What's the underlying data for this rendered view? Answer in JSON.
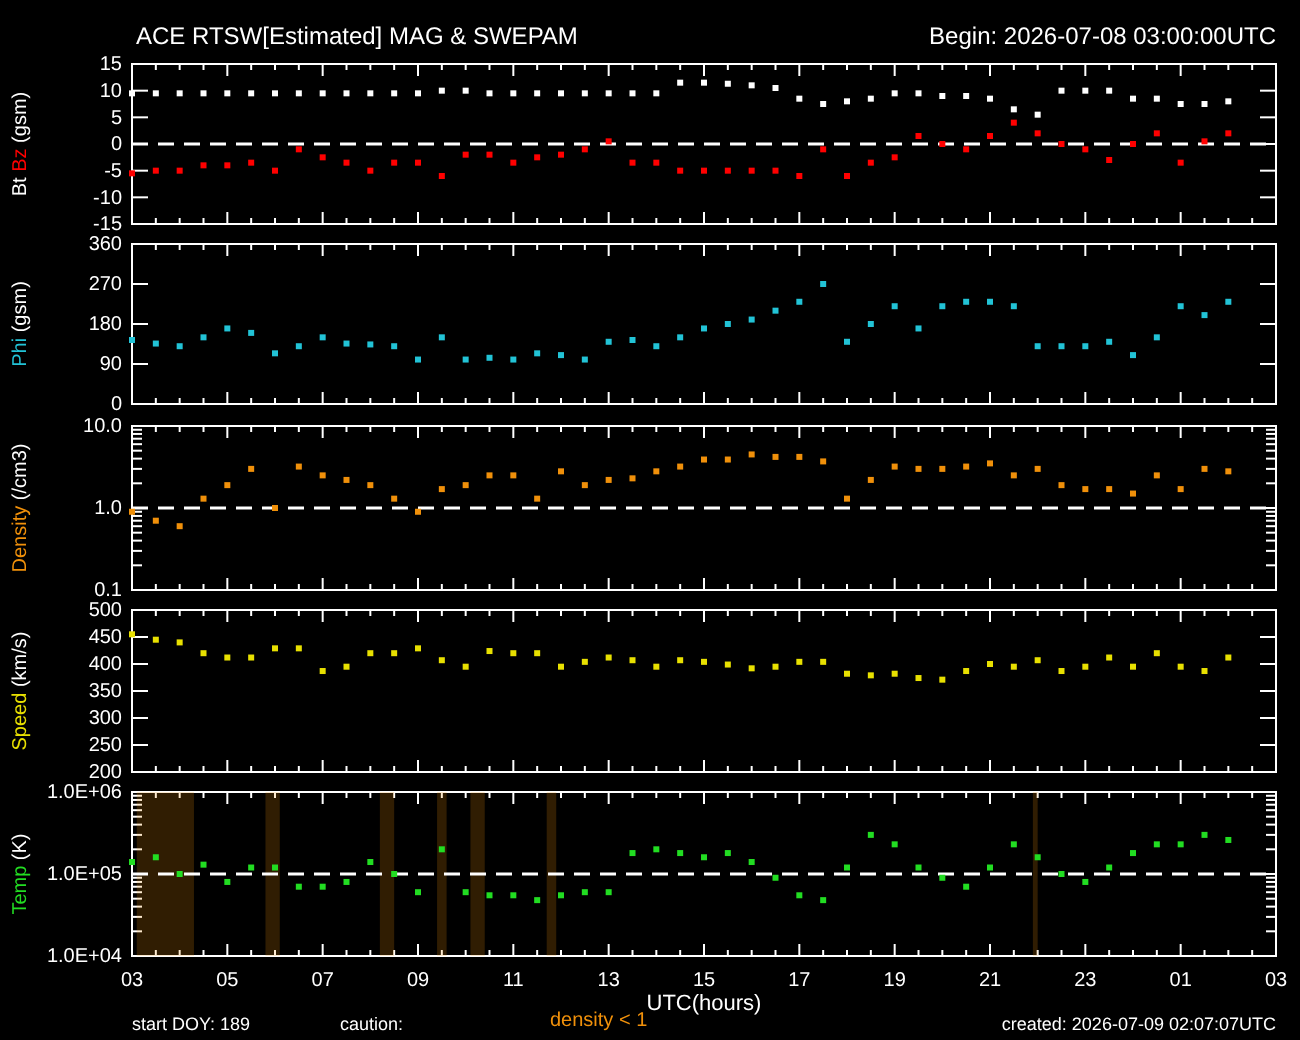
{
  "chart_data": [
    {
      "type": "scatter",
      "title": "ACE RTSW[Estimated] MAG & SWEPAM",
      "subtitle": "Begin: 2026-07-08 03:00:00UTC",
      "ylabel": "(gsm)",
      "marker": "square",
      "tick_labels": "y",
      "xlim": [
        "2026-07-08T03:00",
        "2026-07-09T03:00"
      ],
      "xticks": [
        {
          "value": "2026-07-08T03:00",
          "label": null
        },
        {
          "value": "2026-07-08T05:00",
          "label": null
        },
        {
          "value": "2026-07-08T07:00",
          "label": null
        },
        {
          "value": "2026-07-08T09:00",
          "label": null
        },
        {
          "value": "2026-07-08T11:00",
          "label": null
        },
        {
          "value": "2026-07-08T13:00",
          "label": null
        },
        {
          "value": "2026-07-08T15:00",
          "label": null
        },
        {
          "value": "2026-07-08T17:00",
          "label": null
        },
        {
          "value": "2026-07-08T19:00",
          "label": null
        },
        {
          "value": "2026-07-08T21:00",
          "label": null
        },
        {
          "value": "2026-07-08T23:00",
          "label": null
        },
        {
          "value": "2026-07-09T01:00",
          "label": null
        },
        {
          "value": "2026-07-09T03:00",
          "label": null
        }
      ],
      "ylim": [
        -15,
        15
      ],
      "yticks": [
        -15,
        -10,
        -5,
        0,
        5,
        10,
        15
      ],
      "ref_lines": [
        {
          "axis": "y",
          "value": 0,
          "color": "#ffffff",
          "line_style": "dashed"
        }
      ],
      "x": [
        "2026-07-08T03:00",
        "2026-07-08T03:30",
        "2026-07-08T04:00",
        "2026-07-08T04:30",
        "2026-07-08T05:00",
        "2026-07-08T05:30",
        "2026-07-08T06:00",
        "2026-07-08T06:30",
        "2026-07-08T07:00",
        "2026-07-08T07:30",
        "2026-07-08T08:00",
        "2026-07-08T08:30",
        "2026-07-08T09:00",
        "2026-07-08T09:30",
        "2026-07-08T10:00",
        "2026-07-08T10:30",
        "2026-07-08T11:00",
        "2026-07-08T11:30",
        "2026-07-08T12:00",
        "2026-07-08T12:30",
        "2026-07-08T13:00",
        "2026-07-08T13:30",
        "2026-07-08T14:00",
        "2026-07-08T14:30",
        "2026-07-08T15:00",
        "2026-07-08T15:30",
        "2026-07-08T16:00",
        "2026-07-08T16:30",
        "2026-07-08T17:00",
        "2026-07-08T17:30",
        "2026-07-08T18:00",
        "2026-07-08T18:30",
        "2026-07-08T19:00",
        "2026-07-08T19:30",
        "2026-07-08T20:00",
        "2026-07-08T20:30",
        "2026-07-08T21:00",
        "2026-07-08T21:30",
        "2026-07-08T22:00",
        "2026-07-08T22:30",
        "2026-07-08T23:00",
        "2026-07-08T23:30",
        "2026-07-09T00:00",
        "2026-07-09T00:30",
        "2026-07-09T01:00",
        "2026-07-09T01:30",
        "2026-07-09T02:00"
      ],
      "series": [
        {
          "name": "Bt",
          "color": "#ffffff",
          "values": [
            9.5,
            9.5,
            9.5,
            9.5,
            9.5,
            9.5,
            9.5,
            9.5,
            9.5,
            9.5,
            9.5,
            9.5,
            9.5,
            10,
            10,
            9.5,
            9.5,
            9.5,
            9.5,
            9.5,
            9.5,
            9.5,
            9.5,
            11.5,
            11.5,
            11.3,
            11,
            10.5,
            8.5,
            7.5,
            8,
            8.5,
            9.5,
            9.5,
            9,
            9,
            8.5,
            6.5,
            5.5,
            10,
            10,
            10,
            8.5,
            8.5,
            7.5,
            7.5,
            8
          ]
        },
        {
          "name": "Bz",
          "color": "#ff0000",
          "values": [
            -5.5,
            -5,
            -5,
            -4,
            -4,
            -3.5,
            -5,
            -1,
            -2.5,
            -3.5,
            -5,
            -3.5,
            -3.5,
            -6,
            -2,
            -2,
            -3.5,
            -2.5,
            -2,
            -1,
            0.5,
            -3.5,
            -3.5,
            -5,
            -5,
            -5,
            -5,
            -5,
            -6,
            -1,
            -6,
            -3.5,
            -2.5,
            1.5,
            0,
            -1,
            1.5,
            4,
            2,
            0,
            -1,
            -3,
            0,
            2,
            -3.5,
            0.5,
            2
          ]
        }
      ]
    },
    {
      "type": "scatter",
      "ylabel": "(gsm)",
      "marker": "square",
      "tick_labels": "y",
      "xlim": [
        "2026-07-08T03:00",
        "2026-07-09T03:00"
      ],
      "xticks": [
        {
          "value": "2026-07-08T03:00",
          "label": null
        },
        {
          "value": "2026-07-08T05:00",
          "label": null
        },
        {
          "value": "2026-07-08T07:00",
          "label": null
        },
        {
          "value": "2026-07-08T09:00",
          "label": null
        },
        {
          "value": "2026-07-08T11:00",
          "label": null
        },
        {
          "value": "2026-07-08T13:00",
          "label": null
        },
        {
          "value": "2026-07-08T15:00",
          "label": null
        },
        {
          "value": "2026-07-08T17:00",
          "label": null
        },
        {
          "value": "2026-07-08T19:00",
          "label": null
        },
        {
          "value": "2026-07-08T21:00",
          "label": null
        },
        {
          "value": "2026-07-08T23:00",
          "label": null
        },
        {
          "value": "2026-07-09T01:00",
          "label": null
        },
        {
          "value": "2026-07-09T03:00",
          "label": null
        }
      ],
      "ylim": [
        0,
        360
      ],
      "yticks": [
        0,
        90,
        180,
        270,
        360
      ],
      "x": [
        "2026-07-08T03:00",
        "2026-07-08T03:30",
        "2026-07-08T04:00",
        "2026-07-08T04:30",
        "2026-07-08T05:00",
        "2026-07-08T05:30",
        "2026-07-08T06:00",
        "2026-07-08T06:30",
        "2026-07-08T07:00",
        "2026-07-08T07:30",
        "2026-07-08T08:00",
        "2026-07-08T08:30",
        "2026-07-08T09:00",
        "2026-07-08T09:30",
        "2026-07-08T10:00",
        "2026-07-08T10:30",
        "2026-07-08T11:00",
        "2026-07-08T11:30",
        "2026-07-08T12:00",
        "2026-07-08T12:30",
        "2026-07-08T13:00",
        "2026-07-08T13:30",
        "2026-07-08T14:00",
        "2026-07-08T14:30",
        "2026-07-08T15:00",
        "2026-07-08T15:30",
        "2026-07-08T16:00",
        "2026-07-08T16:30",
        "2026-07-08T17:00",
        "2026-07-08T17:30",
        "2026-07-08T18:00",
        "2026-07-08T18:30",
        "2026-07-08T19:00",
        "2026-07-08T19:30",
        "2026-07-08T20:00",
        "2026-07-08T20:30",
        "2026-07-08T21:00",
        "2026-07-08T21:30",
        "2026-07-08T22:00",
        "2026-07-08T22:30",
        "2026-07-08T23:00",
        "2026-07-08T23:30",
        "2026-07-09T00:00",
        "2026-07-09T00:30",
        "2026-07-09T01:00",
        "2026-07-09T01:30",
        "2026-07-09T02:00"
      ],
      "series": [
        {
          "name": "Phi",
          "color": "#22c3d6",
          "values": [
            144,
            136,
            130,
            150,
            170,
            160,
            114,
            130,
            150,
            136,
            134,
            130,
            100,
            150,
            100,
            104,
            100,
            114,
            110,
            100,
            140,
            144,
            130,
            150,
            170,
            180,
            190,
            210,
            230,
            270,
            140,
            180,
            220,
            170,
            220,
            230,
            230,
            220,
            130,
            130,
            130,
            140,
            110,
            150,
            220,
            200,
            230
          ]
        }
      ]
    },
    {
      "type": "scatter",
      "ylabel": "(/cm3)",
      "marker": "square",
      "tick_labels": "y",
      "log": "y",
      "xlim": [
        "2026-07-08T03:00",
        "2026-07-09T03:00"
      ],
      "xticks": [
        {
          "value": "2026-07-08T03:00",
          "label": null
        },
        {
          "value": "2026-07-08T05:00",
          "label": null
        },
        {
          "value": "2026-07-08T07:00",
          "label": null
        },
        {
          "value": "2026-07-08T09:00",
          "label": null
        },
        {
          "value": "2026-07-08T11:00",
          "label": null
        },
        {
          "value": "2026-07-08T13:00",
          "label": null
        },
        {
          "value": "2026-07-08T15:00",
          "label": null
        },
        {
          "value": "2026-07-08T17:00",
          "label": null
        },
        {
          "value": "2026-07-08T19:00",
          "label": null
        },
        {
          "value": "2026-07-08T21:00",
          "label": null
        },
        {
          "value": "2026-07-08T23:00",
          "label": null
        },
        {
          "value": "2026-07-09T01:00",
          "label": null
        },
        {
          "value": "2026-07-09T03:00",
          "label": null
        }
      ],
      "ylim": [
        0.1,
        10
      ],
      "yticks": [
        {
          "value": 0.1,
          "label": "0.1"
        },
        {
          "value": 1,
          "label": "1.0"
        },
        {
          "value": 10,
          "label": "10.0"
        }
      ],
      "ref_lines": [
        {
          "axis": "y",
          "value": 1,
          "color": "#ffffff",
          "line_style": "dashed"
        }
      ],
      "x": [
        "2026-07-08T03:00",
        "2026-07-08T03:30",
        "2026-07-08T04:00",
        "2026-07-08T04:30",
        "2026-07-08T05:00",
        "2026-07-08T05:30",
        "2026-07-08T06:00",
        "2026-07-08T06:30",
        "2026-07-08T07:00",
        "2026-07-08T07:30",
        "2026-07-08T08:00",
        "2026-07-08T08:30",
        "2026-07-08T09:00",
        "2026-07-08T09:30",
        "2026-07-08T10:00",
        "2026-07-08T10:30",
        "2026-07-08T11:00",
        "2026-07-08T11:30",
        "2026-07-08T12:00",
        "2026-07-08T12:30",
        "2026-07-08T13:00",
        "2026-07-08T13:30",
        "2026-07-08T14:00",
        "2026-07-08T14:30",
        "2026-07-08T15:00",
        "2026-07-08T15:30",
        "2026-07-08T16:00",
        "2026-07-08T16:30",
        "2026-07-08T17:00",
        "2026-07-08T17:30",
        "2026-07-08T18:00",
        "2026-07-08T18:30",
        "2026-07-08T19:00",
        "2026-07-08T19:30",
        "2026-07-08T20:00",
        "2026-07-08T20:30",
        "2026-07-08T21:00",
        "2026-07-08T21:30",
        "2026-07-08T22:00",
        "2026-07-08T22:30",
        "2026-07-08T23:00",
        "2026-07-08T23:30",
        "2026-07-09T00:00",
        "2026-07-09T00:30",
        "2026-07-09T01:00",
        "2026-07-09T01:30",
        "2026-07-09T02:00"
      ],
      "series": [
        {
          "name": "Density",
          "color": "#f0900a",
          "values": [
            0.9,
            0.7,
            0.6,
            1.3,
            1.9,
            3,
            1,
            3.2,
            2.5,
            2.2,
            1.9,
            1.3,
            0.9,
            1.7,
            1.9,
            2.5,
            2.5,
            1.3,
            2.8,
            1.9,
            2.2,
            2.3,
            2.8,
            3.2,
            3.9,
            3.9,
            4.5,
            4.2,
            4.2,
            3.7,
            1.3,
            2.2,
            3.2,
            3,
            3,
            3.2,
            3.5,
            2.5,
            3,
            1.9,
            1.7,
            1.7,
            1.5,
            2.5,
            1.7,
            3,
            2.8
          ]
        }
      ]
    },
    {
      "type": "scatter",
      "ylabel": "(km/s)",
      "marker": "square",
      "tick_labels": "y",
      "xlim": [
        "2026-07-08T03:00",
        "2026-07-09T03:00"
      ],
      "xticks": [
        {
          "value": "2026-07-08T03:00",
          "label": null
        },
        {
          "value": "2026-07-08T05:00",
          "label": null
        },
        {
          "value": "2026-07-08T07:00",
          "label": null
        },
        {
          "value": "2026-07-08T09:00",
          "label": null
        },
        {
          "value": "2026-07-08T11:00",
          "label": null
        },
        {
          "value": "2026-07-08T13:00",
          "label": null
        },
        {
          "value": "2026-07-08T15:00",
          "label": null
        },
        {
          "value": "2026-07-08T17:00",
          "label": null
        },
        {
          "value": "2026-07-08T19:00",
          "label": null
        },
        {
          "value": "2026-07-08T21:00",
          "label": null
        },
        {
          "value": "2026-07-08T23:00",
          "label": null
        },
        {
          "value": "2026-07-09T01:00",
          "label": null
        },
        {
          "value": "2026-07-09T03:00",
          "label": null
        }
      ],
      "ylim": [
        200,
        500
      ],
      "yticks": [
        200,
        250,
        300,
        350,
        400,
        450,
        500
      ],
      "x": [
        "2026-07-08T03:00",
        "2026-07-08T03:30",
        "2026-07-08T04:00",
        "2026-07-08T04:30",
        "2026-07-08T05:00",
        "2026-07-08T05:30",
        "2026-07-08T06:00",
        "2026-07-08T06:30",
        "2026-07-08T07:00",
        "2026-07-08T07:30",
        "2026-07-08T08:00",
        "2026-07-08T08:30",
        "2026-07-08T09:00",
        "2026-07-08T09:30",
        "2026-07-08T10:00",
        "2026-07-08T10:30",
        "2026-07-08T11:00",
        "2026-07-08T11:30",
        "2026-07-08T12:00",
        "2026-07-08T12:30",
        "2026-07-08T13:00",
        "2026-07-08T13:30",
        "2026-07-08T14:00",
        "2026-07-08T14:30",
        "2026-07-08T15:00",
        "2026-07-08T15:30",
        "2026-07-08T16:00",
        "2026-07-08T16:30",
        "2026-07-08T17:00",
        "2026-07-08T17:30",
        "2026-07-08T18:00",
        "2026-07-08T18:30",
        "2026-07-08T19:00",
        "2026-07-08T19:30",
        "2026-07-08T20:00",
        "2026-07-08T20:30",
        "2026-07-08T21:00",
        "2026-07-08T21:30",
        "2026-07-08T22:00",
        "2026-07-08T22:30",
        "2026-07-08T23:00",
        "2026-07-08T23:30",
        "2026-07-09T00:00",
        "2026-07-09T00:30",
        "2026-07-09T01:00",
        "2026-07-09T01:30",
        "2026-07-09T02:00"
      ],
      "series": [
        {
          "name": "Speed",
          "color": "#e8e000",
          "values": [
            455,
            445,
            440,
            420,
            412,
            412,
            429,
            429,
            387,
            395,
            420,
            420,
            429,
            407,
            395,
            424,
            420,
            420,
            395,
            404,
            412,
            407,
            395,
            407,
            404,
            399,
            392,
            395,
            404,
            404,
            382,
            379,
            382,
            374,
            371,
            387,
            400,
            395,
            407,
            387,
            395,
            412,
            395,
            420,
            395,
            387,
            412
          ]
        }
      ]
    },
    {
      "type": "scatter",
      "xlabel": "UTC(hours)",
      "ylabel": "(K)",
      "marker": "square",
      "log": "y",
      "xlim": [
        "2026-07-08T03:00",
        "2026-07-09T03:00"
      ],
      "xticks": [
        {
          "value": "2026-07-08T03:00",
          "label": "03"
        },
        {
          "value": "2026-07-08T05:00",
          "label": "05"
        },
        {
          "value": "2026-07-08T07:00",
          "label": "07"
        },
        {
          "value": "2026-07-08T09:00",
          "label": "09"
        },
        {
          "value": "2026-07-08T11:00",
          "label": "11"
        },
        {
          "value": "2026-07-08T13:00",
          "label": "13"
        },
        {
          "value": "2026-07-08T15:00",
          "label": "15"
        },
        {
          "value": "2026-07-08T17:00",
          "label": "17"
        },
        {
          "value": "2026-07-08T19:00",
          "label": "19"
        },
        {
          "value": "2026-07-08T21:00",
          "label": "21"
        },
        {
          "value": "2026-07-08T23:00",
          "label": "23"
        },
        {
          "value": "2026-07-09T01:00",
          "label": "01"
        },
        {
          "value": "2026-07-09T03:00",
          "label": "03"
        }
      ],
      "ylim": [
        10000,
        1000000
      ],
      "yticks": [
        {
          "value": 10000,
          "label": "1.0E+04"
        },
        {
          "value": 100000,
          "label": "1.0E+05"
        },
        {
          "value": 1000000,
          "label": "1.0E+06"
        }
      ],
      "ref_lines": [
        {
          "axis": "y",
          "value": 100000,
          "color": "#ffffff",
          "line_style": "dashed"
        }
      ],
      "bands": [
        {
          "axis": "x",
          "from": "2026-07-08T03:06",
          "to": "2026-07-08T04:18",
          "color": "#f0900a",
          "label": "density < 1"
        },
        {
          "axis": "x",
          "from": "2026-07-08T05:48",
          "to": "2026-07-08T06:06",
          "color": "#f0900a"
        },
        {
          "axis": "x",
          "from": "2026-07-08T08:12",
          "to": "2026-07-08T08:30",
          "color": "#f0900a"
        },
        {
          "axis": "x",
          "from": "2026-07-08T09:24",
          "to": "2026-07-08T09:36",
          "color": "#f0900a"
        },
        {
          "axis": "x",
          "from": "2026-07-08T10:06",
          "to": "2026-07-08T10:24",
          "color": "#f0900a"
        },
        {
          "axis": "x",
          "from": "2026-07-08T11:42",
          "to": "2026-07-08T11:54",
          "color": "#f0900a"
        },
        {
          "axis": "x",
          "from": "2026-07-08T21:54",
          "to": "2026-07-08T22:00",
          "color": "#f0900a"
        }
      ],
      "annotations": [
        "start DOY: 189",
        "caution:",
        "created: 2026-07-09 02:07:07UTC"
      ],
      "x": [
        "2026-07-08T03:00",
        "2026-07-08T03:30",
        "2026-07-08T04:00",
        "2026-07-08T04:30",
        "2026-07-08T05:00",
        "2026-07-08T05:30",
        "2026-07-08T06:00",
        "2026-07-08T06:30",
        "2026-07-08T07:00",
        "2026-07-08T07:30",
        "2026-07-08T08:00",
        "2026-07-08T08:30",
        "2026-07-08T09:00",
        "2026-07-08T09:30",
        "2026-07-08T10:00",
        "2026-07-08T10:30",
        "2026-07-08T11:00",
        "2026-07-08T11:30",
        "2026-07-08T12:00",
        "2026-07-08T12:30",
        "2026-07-08T13:00",
        "2026-07-08T13:30",
        "2026-07-08T14:00",
        "2026-07-08T14:30",
        "2026-07-08T15:00",
        "2026-07-08T15:30",
        "2026-07-08T16:00",
        "2026-07-08T16:30",
        "2026-07-08T17:00",
        "2026-07-08T17:30",
        "2026-07-08T18:00",
        "2026-07-08T18:30",
        "2026-07-08T19:00",
        "2026-07-08T19:30",
        "2026-07-08T20:00",
        "2026-07-08T20:30",
        "2026-07-08T21:00",
        "2026-07-08T21:30",
        "2026-07-08T22:00",
        "2026-07-08T22:30",
        "2026-07-08T23:00",
        "2026-07-08T23:30",
        "2026-07-09T00:00",
        "2026-07-09T00:30",
        "2026-07-09T01:00",
        "2026-07-09T01:30",
        "2026-07-09T02:00"
      ],
      "series": [
        {
          "name": "Temp",
          "color": "#22dd22",
          "values": [
            140000,
            160000,
            100000,
            130000,
            80000,
            120000,
            120000,
            70000,
            70000,
            80000,
            140000,
            100000,
            60000,
            200000,
            60000,
            55000,
            55000,
            48000,
            55000,
            60000,
            60000,
            180000,
            200000,
            180000,
            160000,
            180000,
            140000,
            90000,
            55000,
            48000,
            120000,
            300000,
            230000,
            120000,
            90000,
            70000,
            120000,
            230000,
            160000,
            100000,
            80000,
            120000,
            180000,
            230000,
            230000,
            300000,
            260000
          ]
        }
      ]
    }
  ]
}
